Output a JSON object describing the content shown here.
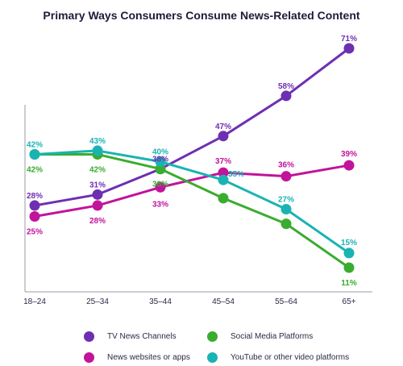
{
  "chart_data": {
    "type": "line",
    "title": "Primary Ways Consumers Consume News-Related Content",
    "categories": [
      "18–24",
      "25–34",
      "35–44",
      "45–54",
      "55–64",
      "65+"
    ],
    "series": [
      {
        "name": "TV News Channels",
        "color": "#6e2fb2",
        "values": [
          28,
          31,
          38,
          47,
          58,
          71
        ]
      },
      {
        "name": "News websites or apps",
        "color": "#c2139b",
        "values": [
          25,
          28,
          33,
          37,
          36,
          39
        ]
      },
      {
        "name": "Social Media Platforms",
        "color": "#3aac2e",
        "values": [
          42,
          42,
          38,
          30,
          23,
          11
        ]
      },
      {
        "name": "YouTube or other video platforms",
        "color": "#1ab3b3",
        "values": [
          42,
          43,
          40,
          35,
          27,
          15
        ]
      }
    ],
    "value_labels": [
      {
        "series": 0,
        "labels": [
          "28%",
          "31%",
          "38%",
          "47%",
          "58%",
          "71%"
        ]
      },
      {
        "series": 1,
        "labels": [
          "25%",
          "28%",
          "33%",
          "37%",
          "36%",
          "39%"
        ]
      },
      {
        "series": 2,
        "labels": [
          "42%",
          "42%",
          "38%",
          "",
          "",
          "11%"
        ]
      },
      {
        "series": 3,
        "labels": [
          "42%",
          "43%",
          "40%",
          "35%",
          "27%",
          "15%"
        ]
      }
    ],
    "ylim": [
      5,
      75
    ],
    "grid": false,
    "legend_position": "bottom"
  }
}
